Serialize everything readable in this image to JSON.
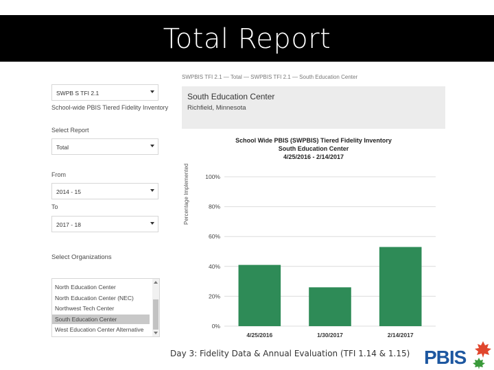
{
  "slide": {
    "title": "Total Report",
    "footer": "Day 3: Fidelity Data & Annual Evaluation (TFI 1.14 & 1.15)",
    "logo_text": "PBIS"
  },
  "form": {
    "top_cut_label": "SWPBIS TFI 2.1 — Total — SWPBIS TFI 2.1 — South Education Center",
    "survey_value": "SWPB S TFI 2.1",
    "survey_caption": "School-wide PBIS Tiered Fidelity Inventory",
    "report_label": "Select Report",
    "report_value": "Total",
    "from_label": "From",
    "from_value": "2014 - 15",
    "to_label": "To",
    "to_value": "2017 - 18",
    "orgs_label": "Select Organizations",
    "orgs": [
      "North Education Center",
      "North Education Center (NEC)",
      "Northwest Tech Center",
      "South Education Center",
      "West Education Center Alternative"
    ],
    "selected_org": "South Education Center"
  },
  "org_panel": {
    "name": "South Education Center",
    "location": "Richfield, Minnesota"
  },
  "chart_data": {
    "type": "bar",
    "title": "School Wide PBIS (SWPBIS) Tiered Fidelity Inventory",
    "subtitle": "South Education Center",
    "date_range": "4/25/2016 - 2/14/2017",
    "ylabel": "Percentage Implemented",
    "categories": [
      "4/25/2016",
      "1/30/2017",
      "2/14/2017"
    ],
    "values": [
      41,
      26,
      53
    ],
    "ylim": [
      0,
      100
    ],
    "yticks": [
      "0%",
      "20%",
      "40%",
      "60%",
      "80%",
      "100%"
    ],
    "bar_color": "#2e8b57",
    "grid": true
  }
}
